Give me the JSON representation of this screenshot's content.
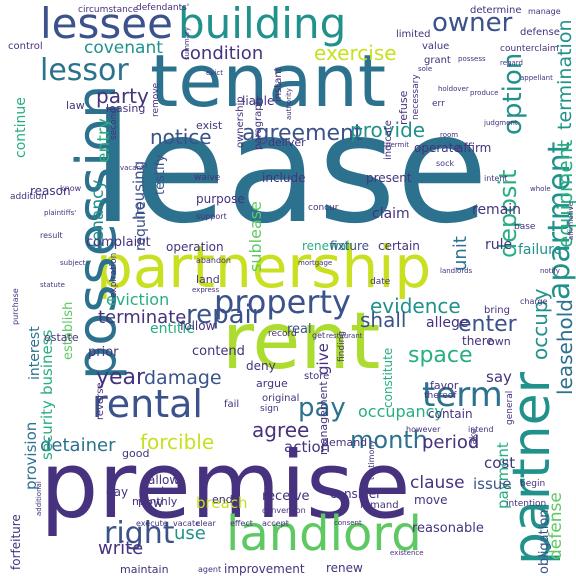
{
  "palette": {
    "dark_purple": "#46327e",
    "indigo": "#3b528b",
    "steel": "#365c8d",
    "blue": "#2c728e",
    "teal": "#21918c",
    "green_teal": "#28ae80",
    "green": "#5ec962",
    "lime": "#addc30",
    "yellow_green": "#c8e020",
    "deep": "#440154",
    "background": "#ffffff"
  },
  "words": [
    {
      "text": "lease",
      "color": "#2c728e"
    },
    {
      "text": "premise",
      "color": "#46327e"
    },
    {
      "text": "tenant",
      "color": "#2c728e"
    },
    {
      "text": "partnership",
      "color": "#c8e020"
    },
    {
      "text": "rent",
      "color": "#addc30"
    },
    {
      "text": "possession",
      "color": "#2c728e"
    },
    {
      "text": "building",
      "color": "#21918c"
    },
    {
      "text": "lessee",
      "color": "#3b528b"
    },
    {
      "text": "landlord",
      "color": "#5ec962"
    },
    {
      "text": "partner",
      "color": "#21918c"
    },
    {
      "text": "rental",
      "color": "#3b528b"
    },
    {
      "text": "property",
      "color": "#3b528b"
    },
    {
      "text": "lessor",
      "color": "#2c728e"
    },
    {
      "text": "owner",
      "color": "#3b528b"
    },
    {
      "text": "term",
      "color": "#2c728e"
    },
    {
      "text": "right",
      "color": "#3b528b"
    },
    {
      "text": "apartment",
      "color": "#21918c"
    },
    {
      "text": "agreement",
      "color": "#3b528b"
    },
    {
      "text": "option",
      "color": "#21918c"
    },
    {
      "text": "repair",
      "color": "#3b528b"
    },
    {
      "text": "month",
      "color": "#2c728e"
    },
    {
      "text": "forcible",
      "color": "#c8e020"
    },
    {
      "text": "year",
      "color": "#46327e"
    },
    {
      "text": "pay",
      "color": "#2c728e"
    },
    {
      "text": "provide",
      "color": "#21918c"
    },
    {
      "text": "notice",
      "color": "#3b528b"
    },
    {
      "text": "exercise",
      "color": "#c8e020"
    },
    {
      "text": "condition",
      "color": "#46327e"
    },
    {
      "text": "covenant",
      "color": "#21918c"
    },
    {
      "text": "party",
      "color": "#46327e"
    },
    {
      "text": "deposit",
      "color": "#28ae80"
    },
    {
      "text": "termination",
      "color": "#21918c"
    },
    {
      "text": "equipment",
      "color": "#28ae80"
    },
    {
      "text": "evidence",
      "color": "#21918c"
    },
    {
      "text": "enter",
      "color": "#3b528b"
    },
    {
      "text": "shall",
      "color": "#3b528b"
    },
    {
      "text": "space",
      "color": "#28ae80"
    },
    {
      "text": "terminate",
      "color": "#46327e"
    },
    {
      "text": "damage",
      "color": "#3b528b"
    },
    {
      "text": "occupy",
      "color": "#21918c"
    },
    {
      "text": "leasehold",
      "color": "#2c728e"
    },
    {
      "text": "detainer",
      "color": "#2c728e"
    },
    {
      "text": "agree",
      "color": "#46327e"
    },
    {
      "text": "period",
      "color": "#46327e"
    },
    {
      "text": "tenancy",
      "color": "#21918c"
    },
    {
      "text": "entry",
      "color": "#28ae80"
    },
    {
      "text": "write",
      "color": "#46327e"
    },
    {
      "text": "use",
      "color": "#21918c"
    },
    {
      "text": "occupancy",
      "color": "#28ae80"
    },
    {
      "text": "unit",
      "color": "#2c728e"
    },
    {
      "text": "eviction",
      "color": "#28ae80"
    },
    {
      "text": "action",
      "color": "#46327e"
    },
    {
      "text": "sublease",
      "color": "#5ec962"
    },
    {
      "text": "housing",
      "color": "#3b528b"
    },
    {
      "text": "business",
      "color": "#28ae80"
    },
    {
      "text": "security",
      "color": "#28ae80"
    },
    {
      "text": "interest",
      "color": "#2c728e"
    },
    {
      "text": "provision",
      "color": "#2c728e"
    },
    {
      "text": "payment",
      "color": "#28ae80"
    },
    {
      "text": "clause",
      "color": "#46327e"
    },
    {
      "text": "issue",
      "color": "#3b528b"
    },
    {
      "text": "defense",
      "color": "#5ec962"
    },
    {
      "text": "obligation",
      "color": "#3b528b"
    },
    {
      "text": "cost",
      "color": "#46327e"
    },
    {
      "text": "say",
      "color": "#46327e"
    },
    {
      "text": "give",
      "color": "#46327e"
    },
    {
      "text": "claim",
      "color": "#46327e"
    },
    {
      "text": "remain",
      "color": "#46327e"
    },
    {
      "text": "continue",
      "color": "#28ae80"
    },
    {
      "text": "require",
      "color": "#3b528b"
    },
    {
      "text": "testify",
      "color": "#3b528b"
    },
    {
      "text": "complaint",
      "color": "#46327e"
    },
    {
      "text": "renewal",
      "color": "#28ae80"
    },
    {
      "text": "fixture",
      "color": "#3b528b"
    },
    {
      "text": "certain",
      "color": "#46327e"
    },
    {
      "text": "rule",
      "color": "#46327e"
    },
    {
      "text": "failure",
      "color": "#21918c"
    },
    {
      "text": "entitle",
      "color": "#28ae80"
    },
    {
      "text": "contend",
      "color": "#46327e"
    },
    {
      "text": "real",
      "color": "#3b528b"
    },
    {
      "text": "allege",
      "color": "#46327e"
    },
    {
      "text": "follow",
      "color": "#46327e"
    },
    {
      "text": "prior",
      "color": "#46327e"
    },
    {
      "text": "establish",
      "color": "#5ec962"
    },
    {
      "text": "estate",
      "color": "#46327e"
    },
    {
      "text": "breach",
      "color": "#c8e020"
    },
    {
      "text": "new",
      "color": "#46327e"
    },
    {
      "text": "allow",
      "color": "#46327e"
    },
    {
      "text": "extend",
      "color": "#46327e"
    },
    {
      "text": "monthly",
      "color": "#46327e"
    },
    {
      "text": "day",
      "color": "#46327e"
    },
    {
      "text": "good",
      "color": "#46327e"
    },
    {
      "text": "receive",
      "color": "#46327e"
    },
    {
      "text": "improvement",
      "color": "#46327e"
    },
    {
      "text": "maintain",
      "color": "#46327e"
    },
    {
      "text": "renew",
      "color": "#46327e"
    },
    {
      "text": "reasonable",
      "color": "#46327e"
    },
    {
      "text": "move",
      "color": "#46327e"
    },
    {
      "text": "end",
      "color": "#46327e"
    },
    {
      "text": "demand",
      "color": "#46327e"
    },
    {
      "text": "consider",
      "color": "#46327e"
    },
    {
      "text": "remand",
      "color": "#46327e"
    },
    {
      "text": "management",
      "color": "#46327e"
    },
    {
      "text": "constitute",
      "color": "#28ae80"
    },
    {
      "text": "contain",
      "color": "#46327e"
    },
    {
      "text": "store",
      "color": "#46327e"
    },
    {
      "text": "deny",
      "color": "#46327e"
    },
    {
      "text": "argue",
      "color": "#46327e"
    },
    {
      "text": "original",
      "color": "#46327e"
    },
    {
      "text": "favor",
      "color": "#46327e"
    },
    {
      "text": "there",
      "color": "#46327e"
    },
    {
      "text": "own",
      "color": "#46327e"
    },
    {
      "text": "bring",
      "color": "#46327e"
    },
    {
      "text": "forfeiture",
      "color": "#46327e"
    },
    {
      "text": "reverse",
      "color": "#46327e"
    },
    {
      "text": "operation",
      "color": "#46327e"
    },
    {
      "text": "land",
      "color": "#46327e"
    },
    {
      "text": "operate",
      "color": "#46327e"
    },
    {
      "text": "affirm",
      "color": "#46327e"
    },
    {
      "text": "include",
      "color": "#46327e"
    },
    {
      "text": "present",
      "color": "#46327e"
    },
    {
      "text": "purpose",
      "color": "#46327e"
    },
    {
      "text": "deliver",
      "color": "#46327e"
    },
    {
      "text": "exist",
      "color": "#46327e"
    },
    {
      "text": "liable",
      "color": "#46327e"
    },
    {
      "text": "law",
      "color": "#46327e"
    },
    {
      "text": "leasing",
      "color": "#46327e"
    },
    {
      "text": "reason",
      "color": "#46327e"
    },
    {
      "text": "value",
      "color": "#46327e"
    },
    {
      "text": "grant",
      "color": "#46327e"
    },
    {
      "text": "control",
      "color": "#46327e"
    },
    {
      "text": "limited",
      "color": "#46327e"
    },
    {
      "text": "determine",
      "color": "#46327e"
    },
    {
      "text": "circumstance",
      "color": "#46327e"
    },
    {
      "text": "defendants'",
      "color": "#46327e"
    },
    {
      "text": "manage",
      "color": "#46327e"
    },
    {
      "text": "defense",
      "color": "#46327e"
    },
    {
      "text": "counterclaim",
      "color": "#46327e"
    },
    {
      "text": "ownership",
      "color": "#46327e"
    },
    {
      "text": "paragraph",
      "color": "#46327e"
    },
    {
      "text": "instant",
      "color": "#46327e"
    },
    {
      "text": "refuse",
      "color": "#46327e"
    },
    {
      "text": "necessary",
      "color": "#46327e"
    },
    {
      "text": "err",
      "color": "#46327e"
    },
    {
      "text": "remove",
      "color": "#46327e"
    },
    {
      "text": "second",
      "color": "#46327e"
    },
    {
      "text": "indicate",
      "color": "#46327e"
    },
    {
      "text": "waive",
      "color": "#46327e"
    },
    {
      "text": "concur",
      "color": "#46327e"
    },
    {
      "text": "support",
      "color": "#46327e"
    },
    {
      "text": "intent",
      "color": "#46327e"
    },
    {
      "text": "base",
      "color": "#46327e"
    },
    {
      "text": "abandon",
      "color": "#46327e"
    },
    {
      "text": "date",
      "color": "#46327e"
    },
    {
      "text": "express",
      "color": "#46327e"
    },
    {
      "text": "expiration",
      "color": "#46327e"
    },
    {
      "text": "charge",
      "color": "#46327e"
    },
    {
      "text": "record",
      "color": "#46327e"
    },
    {
      "text": "get",
      "color": "#46327e"
    },
    {
      "text": "finding",
      "color": "#46327e"
    },
    {
      "text": "sign",
      "color": "#46327e"
    },
    {
      "text": "fail",
      "color": "#46327e"
    },
    {
      "text": "however",
      "color": "#46327e"
    },
    {
      "text": "general",
      "color": "#46327e"
    },
    {
      "text": "thereof",
      "color": "#46327e"
    },
    {
      "text": "intend",
      "color": "#46327e"
    },
    {
      "text": "begin",
      "color": "#46327e"
    },
    {
      "text": "intention",
      "color": "#46327e"
    },
    {
      "text": "take",
      "color": "#46327e"
    },
    {
      "text": "execute",
      "color": "#46327e"
    },
    {
      "text": "vacate",
      "color": "#46327e"
    },
    {
      "text": "clear",
      "color": "#46327e"
    },
    {
      "text": "effect",
      "color": "#46327e"
    },
    {
      "text": "accept",
      "color": "#46327e"
    },
    {
      "text": "conversion",
      "color": "#46327e"
    },
    {
      "text": "agent",
      "color": "#46327e"
    },
    {
      "text": "testimony",
      "color": "#46327e"
    },
    {
      "text": "addition",
      "color": "#46327e"
    },
    {
      "text": "know",
      "color": "#46327e"
    },
    {
      "text": "result",
      "color": "#46327e"
    },
    {
      "text": "purchase",
      "color": "#46327e"
    },
    {
      "text": "additional",
      "color": "#46327e"
    },
    {
      "text": "restaurant",
      "color": "#46327e"
    },
    {
      "text": "sock",
      "color": "#46327e"
    },
    {
      "text": "permit",
      "color": "#46327e"
    },
    {
      "text": "room",
      "color": "#46327e"
    },
    {
      "text": "judgment",
      "color": "#46327e"
    },
    {
      "text": "possess",
      "color": "#46327e"
    },
    {
      "text": "authority",
      "color": "#46327e"
    },
    {
      "text": "appellant",
      "color": "#46327e"
    },
    {
      "text": "affirmative",
      "color": "#46327e"
    },
    {
      "text": "summary",
      "color": "#46327e"
    },
    {
      "text": "plaintiffs'",
      "color": "#46327e"
    },
    {
      "text": "produce",
      "color": "#46327e"
    },
    {
      "text": "evict",
      "color": "#46327e"
    },
    {
      "text": "whole",
      "color": "#46327e"
    },
    {
      "text": "consent",
      "color": "#46327e"
    },
    {
      "text": "landlords",
      "color": "#46327e"
    },
    {
      "text": "mortgage",
      "color": "#46327e"
    },
    {
      "text": "holdover",
      "color": "#46327e"
    },
    {
      "text": "statute",
      "color": "#46327e"
    },
    {
      "text": "notify",
      "color": "#46327e"
    },
    {
      "text": "existence",
      "color": "#46327e"
    },
    {
      "text": "sole",
      "color": "#46327e"
    },
    {
      "text": "regard",
      "color": "#46327e"
    },
    {
      "text": "vacant",
      "color": "#46327e"
    },
    {
      "text": "subject",
      "color": "#46327e"
    }
  ]
}
